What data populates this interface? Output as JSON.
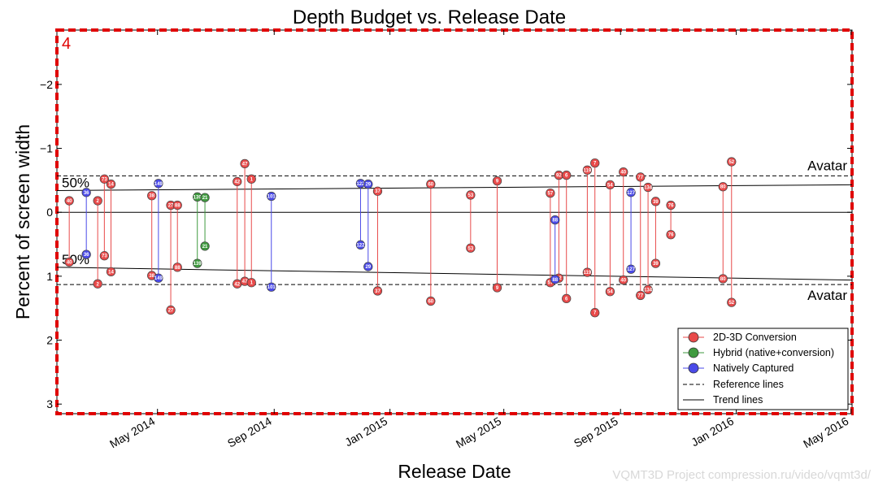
{
  "chart_data": {
    "type": "scatter",
    "title": "Depth Budget vs. Release Date",
    "xlabel": "Release Date",
    "ylabel": "Percent of screen width",
    "y_inverted": true,
    "ylim": [
      -2.85,
      3.15
    ],
    "yticks": [
      -2,
      -1,
      0,
      1,
      2,
      3
    ],
    "ytick_labels": [
      "−2",
      "−1",
      "0",
      "1",
      "2",
      "3"
    ],
    "xlim": [
      "2014-01-15",
      "2016-05-02"
    ],
    "xticks": [
      "2014-05-01",
      "2014-09-01",
      "2015-01-01",
      "2015-05-01",
      "2015-09-01",
      "2016-01-01",
      "2016-05-01"
    ],
    "xtick_labels": [
      "May 2014",
      "Sep 2014",
      "Jan 2015",
      "May 2015",
      "Sep 2015",
      "Jan 2016",
      "May 2016"
    ],
    "panel_label": "4",
    "grid": false,
    "legend_position": "bottom-right",
    "legend": [
      {
        "label": "2D-3D Conversion",
        "type": "marker",
        "color": "#e84a4a"
      },
      {
        "label": "Hybrid (native+conversion)",
        "type": "marker",
        "color": "#3f9a3f"
      },
      {
        "label": "Natively Captured",
        "type": "marker",
        "color": "#4a4ae8"
      },
      {
        "label": "Reference lines",
        "type": "dashed"
      },
      {
        "label": "Trend lines",
        "type": "solid"
      }
    ],
    "reference_lines": {
      "values": [
        -0.57,
        1.13
      ],
      "right_labels": [
        "Avatar",
        "Avatar"
      ],
      "left_labels": [
        "50%",
        "50%"
      ]
    },
    "trend_lines": [
      {
        "from": [
          "2014-01-15",
          -0.34
        ],
        "to": [
          "2016-05-02",
          -0.43
        ]
      },
      {
        "from": [
          "2014-01-15",
          0.86
        ],
        "to": [
          "2016-05-02",
          1.06
        ]
      }
    ],
    "series": [
      {
        "name": "2D-3D Conversion",
        "color": "#e84a4a",
        "points": [
          {
            "date": "2014-01-28",
            "label": "40",
            "low": -0.18,
            "high": 0.78
          },
          {
            "date": "2014-02-27",
            "label": "2",
            "low": -0.18,
            "high": 1.12
          },
          {
            "date": "2014-03-06",
            "label": "73",
            "low": -0.52,
            "high": 0.68
          },
          {
            "date": "2014-03-13",
            "label": "14",
            "low": -0.44,
            "high": 0.93
          },
          {
            "date": "2014-04-25",
            "label": "38",
            "low": -0.26,
            "high": 0.99
          },
          {
            "date": "2014-05-15",
            "label": "27",
            "low": -0.11,
            "high": 1.53
          },
          {
            "date": "2014-05-22",
            "label": "88",
            "low": -0.11,
            "high": 0.86
          },
          {
            "date": "2014-07-24",
            "label": "42",
            "low": -0.48,
            "high": 1.12
          },
          {
            "date": "2014-08-01",
            "label": "47",
            "low": -0.76,
            "high": 1.08
          },
          {
            "date": "2014-08-08",
            "label": "1",
            "low": -0.52,
            "high": 1.1
          },
          {
            "date": "2014-12-19",
            "label": "37",
            "low": -0.33,
            "high": 1.23
          },
          {
            "date": "2015-02-13",
            "label": "60",
            "low": -0.44,
            "high": 1.39
          },
          {
            "date": "2015-03-27",
            "label": "53",
            "low": -0.27,
            "high": 0.56
          },
          {
            "date": "2015-04-24",
            "label": "9",
            "low": -0.49,
            "high": 1.18
          },
          {
            "date": "2015-06-19",
            "label": "57",
            "low": -0.3,
            "high": 1.1
          },
          {
            "date": "2015-06-28",
            "label": "92",
            "low": -0.58,
            "high": 1.03
          },
          {
            "date": "2015-07-06",
            "label": "6",
            "low": -0.58,
            "high": 1.35
          },
          {
            "date": "2015-07-28",
            "label": "119",
            "low": -0.66,
            "high": 0.94
          },
          {
            "date": "2015-08-05",
            "label": "7",
            "low": -0.77,
            "high": 1.57
          },
          {
            "date": "2015-08-21",
            "label": "54",
            "low": -0.43,
            "high": 1.24
          },
          {
            "date": "2015-09-04",
            "label": "40",
            "low": -0.63,
            "high": 1.06
          },
          {
            "date": "2015-09-22",
            "label": "77",
            "low": -0.55,
            "high": 1.3
          },
          {
            "date": "2015-09-30",
            "label": "134",
            "low": -0.39,
            "high": 1.21
          },
          {
            "date": "2015-10-08",
            "label": "39",
            "low": -0.17,
            "high": 0.8
          },
          {
            "date": "2015-10-24",
            "label": "76",
            "low": -0.11,
            "high": 0.35
          },
          {
            "date": "2015-12-18",
            "label": "80",
            "low": -0.4,
            "high": 1.04
          },
          {
            "date": "2015-12-27",
            "label": "52",
            "low": -0.79,
            "high": 1.41
          }
        ]
      },
      {
        "name": "Hybrid (native+conversion)",
        "color": "#3f9a3f",
        "points": [
          {
            "date": "2014-06-12",
            "label": "139",
            "low": -0.24,
            "high": 0.8
          },
          {
            "date": "2014-06-20",
            "label": "21",
            "low": -0.23,
            "high": 0.53
          }
        ]
      },
      {
        "name": "Natively Captured",
        "color": "#4a4ae8",
        "points": [
          {
            "date": "2014-02-15",
            "label": "36",
            "low": -0.31,
            "high": 0.66
          },
          {
            "date": "2014-05-02",
            "label": "149",
            "low": -0.45,
            "high": 1.03
          },
          {
            "date": "2014-08-29",
            "label": "101",
            "low": -0.25,
            "high": 1.17
          },
          {
            "date": "2014-12-01",
            "label": "122",
            "low": -0.45,
            "high": 0.51
          },
          {
            "date": "2014-12-09",
            "label": "29",
            "low": -0.44,
            "high": 0.85
          },
          {
            "date": "2015-06-24",
            "label": "88",
            "low": 0.12,
            "high": 1.05
          },
          {
            "date": "2015-09-12",
            "label": "127",
            "low": -0.31,
            "high": 0.89
          }
        ]
      }
    ]
  },
  "watermark": "VQMT3D Project compression.ru/video/vqmt3d/"
}
